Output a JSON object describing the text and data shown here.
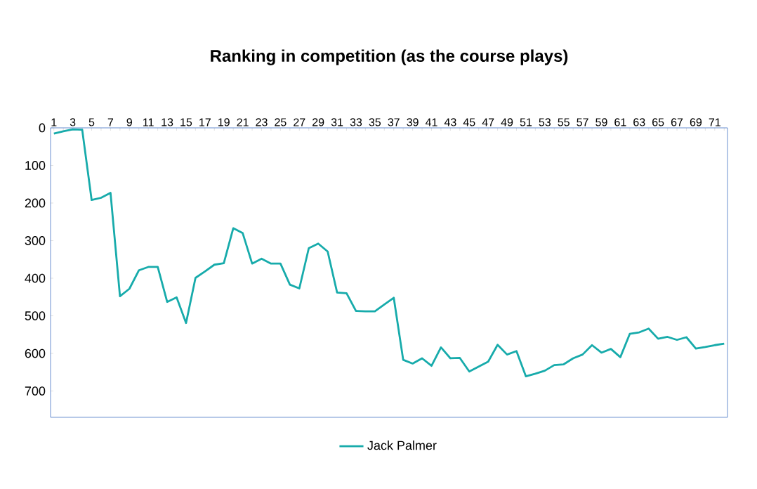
{
  "chart_data": {
    "type": "line",
    "title": "Ranking in competition (as the course plays)",
    "categories": [
      "1",
      null,
      "3",
      null,
      "5",
      null,
      "7",
      null,
      "9",
      null,
      "11",
      null,
      "13",
      null,
      "15",
      null,
      "17",
      null,
      "19",
      null,
      "21",
      null,
      "23",
      null,
      "25",
      null,
      "27",
      null,
      "29",
      null,
      "31",
      null,
      "33",
      null,
      "35",
      null,
      "37",
      null,
      "39",
      null,
      "41",
      null,
      "43",
      null,
      "45",
      null,
      "47",
      null,
      "49",
      null,
      "51",
      null,
      "53",
      null,
      "55",
      null,
      "57",
      null,
      "59",
      null,
      "61",
      null,
      "63",
      null,
      "65",
      null,
      "67",
      null,
      "69",
      null,
      "71",
      null
    ],
    "series": [
      {
        "name": "Jack Palmer",
        "color": "#17abab",
        "values": [
          15,
          9,
          4,
          5,
          192,
          186,
          173,
          448,
          428,
          379,
          370,
          370,
          463,
          451,
          519,
          399,
          382,
          364,
          360,
          267,
          280,
          361,
          348,
          361,
          361,
          417,
          427,
          320,
          308,
          329,
          438,
          440,
          487,
          488,
          488,
          470,
          452,
          617,
          627,
          613,
          633,
          584,
          613,
          612,
          648,
          635,
          622,
          577,
          603,
          594,
          661,
          654,
          646,
          631,
          629,
          613,
          603,
          578,
          598,
          588,
          610,
          548,
          544,
          534,
          561,
          556,
          564,
          557,
          587,
          583,
          578,
          574
        ]
      }
    ],
    "ylim": [
      770,
      0
    ],
    "yticks": [
      0,
      100,
      200,
      300,
      400,
      500,
      600,
      700
    ],
    "legend": "bottom",
    "marker": "none",
    "line_style": "solid"
  }
}
